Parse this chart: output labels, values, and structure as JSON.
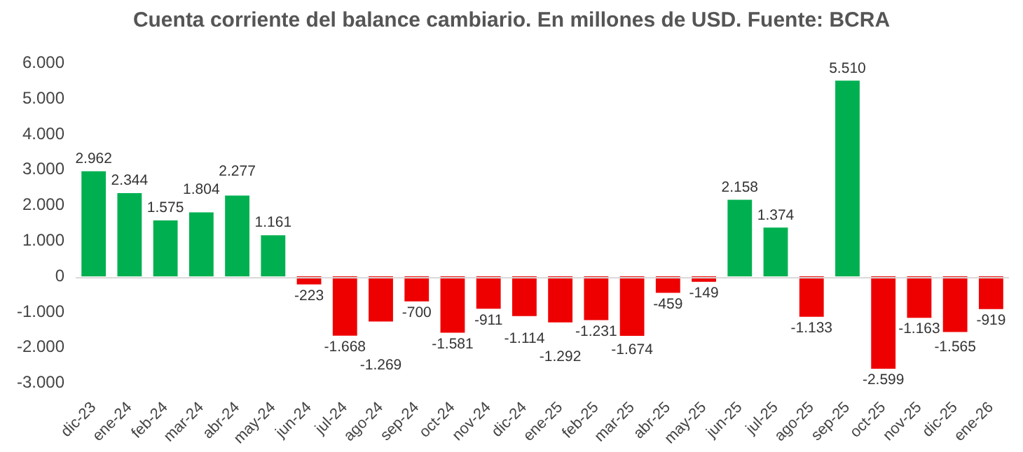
{
  "chart_data": {
    "type": "bar",
    "title": "Cuenta corriente del balance cambiario. En millones de USD. Fuente: BCRA",
    "categories": [
      "dic-23",
      "ene-24",
      "feb-24",
      "mar-24",
      "abr-24",
      "may-24",
      "jun-24",
      "jul-24",
      "ago-24",
      "sep-24",
      "oct-24",
      "nov-24",
      "dic-24",
      "ene-25",
      "feb-25",
      "mar-25",
      "abr-25",
      "may-25",
      "jun-25",
      "jul-25",
      "ago-25",
      "sep-25",
      "oct-25",
      "nov-25",
      "dic-25",
      "ene-26"
    ],
    "values": [
      2962,
      2344,
      1575,
      1804,
      2277,
      1161,
      -223,
      -1668,
      -1269,
      -700,
      -1581,
      -911,
      -1114,
      -1292,
      -1231,
      -1674,
      -459,
      -149,
      2158,
      1374,
      -1133,
      5510,
      -2599,
      -1163,
      -1565,
      -919
    ],
    "value_labels": [
      "2.962",
      "2.344",
      "1.575",
      "1.804",
      "2.277",
      "1.161",
      "-223",
      "-1.668",
      "-1.269",
      "-700",
      "-1.581",
      "-911",
      "-1.114",
      "-1.292",
      "-1.231",
      "-1.674",
      "-459",
      "-149",
      "2.158",
      "1.374",
      "-1.133",
      "5.510",
      "-2.599",
      "-1.163",
      "-1.565",
      "-919"
    ],
    "colors": [
      "#00b050",
      "#00b050",
      "#00b050",
      "#00b050",
      "#00b050",
      "#00b050",
      "#ee0000",
      "#ee0000",
      "#ee0000",
      "#ee0000",
      "#ee0000",
      "#ee0000",
      "#ee0000",
      "#ee0000",
      "#ee0000",
      "#ee0000",
      "#ee0000",
      "#ee0000",
      "#00b050",
      "#00b050",
      "#ee0000",
      "#00b050",
      "#ee0000",
      "#ee0000",
      "#ee0000",
      "#ee0000"
    ],
    "ylim": [
      -3000,
      6000
    ],
    "yticks": [
      {
        "value": -3000,
        "label": "-3.000"
      },
      {
        "value": -2000,
        "label": "-2.000"
      },
      {
        "value": -1000,
        "label": "-1.000"
      },
      0,
      {
        "value": 1000,
        "label": "1.000"
      },
      {
        "value": 2000,
        "label": "2.000"
      },
      {
        "value": 3000,
        "label": "3.000"
      },
      {
        "value": 4000,
        "label": "4.000"
      },
      {
        "value": 5000,
        "label": "5.000"
      },
      {
        "value": 6000,
        "label": "6.000"
      }
    ],
    "ref_lines": [
      {
        "axis": "y",
        "value": 0,
        "color": "#d9d9d9"
      }
    ],
    "grid": false,
    "legend": false
  }
}
